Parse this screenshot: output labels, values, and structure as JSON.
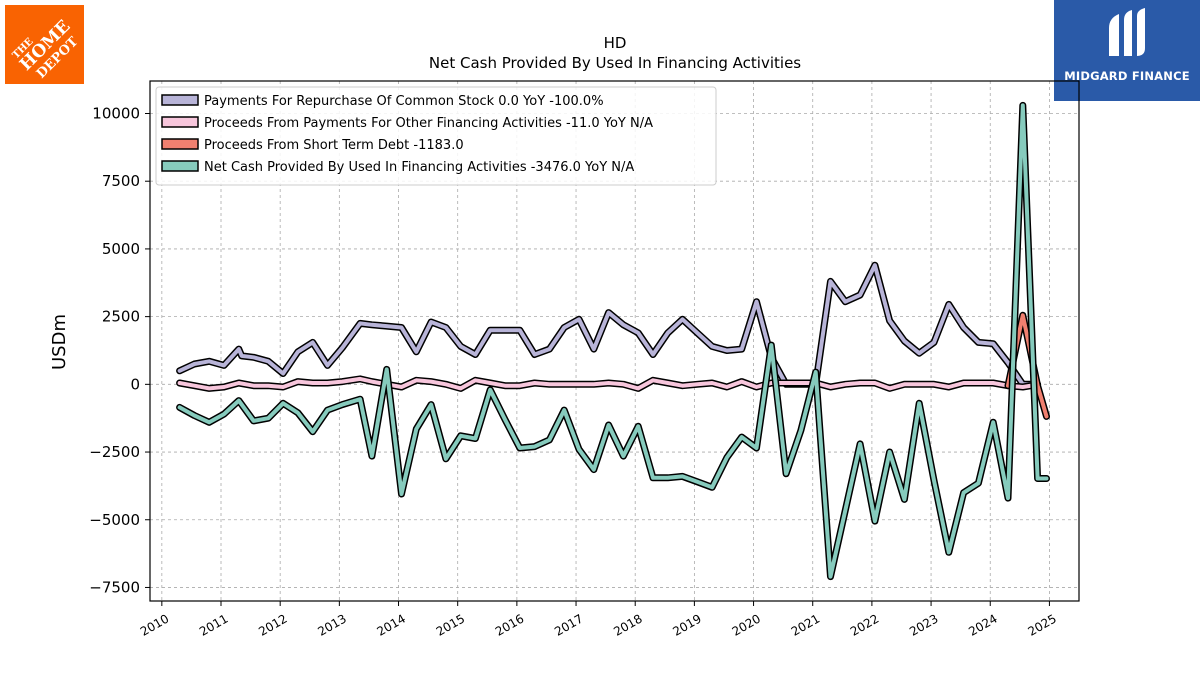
{
  "brand": {
    "left_logo": "THE HOME DEPOT",
    "right_logo": "MIDGARD FINANCE",
    "left_logo_color": "#f96302",
    "right_logo_color": "#2a5aa8"
  },
  "chart_data": {
    "type": "line",
    "title": "HD",
    "subtitle": "Net Cash Provided By Used In Financing Activities",
    "ylabel": "USDm",
    "xlabel": "",
    "xlim": [
      2009.8,
      2025.5
    ],
    "ylim": [
      -8000,
      11200
    ],
    "yticks": [
      -7500,
      -5000,
      -2500,
      0,
      2500,
      5000,
      7500,
      10000
    ],
    "ytick_labels": [
      "−7500",
      "−5000",
      "−2500",
      "0",
      "2500",
      "5000",
      "7500",
      "10000"
    ],
    "xticks": [
      2010,
      2011,
      2012,
      2013,
      2014,
      2015,
      2016,
      2017,
      2018,
      2019,
      2020,
      2021,
      2022,
      2023,
      2024,
      2025
    ],
    "xtick_labels": [
      "2010",
      "2011",
      "2012",
      "2013",
      "2014",
      "2015",
      "2016",
      "2017",
      "2018",
      "2019",
      "2020",
      "2021",
      "2022",
      "2023",
      "2024",
      "2025"
    ],
    "grid": true,
    "legend_position": "top-left",
    "series": [
      {
        "name": "Payments For Repurchase Of Common Stock  0.0 YoY -100.0%",
        "color": "#b8b4d8",
        "x": [
          2010.3,
          2010.55,
          2010.8,
          2011.05,
          2011.3,
          2011.35,
          2011.55,
          2011.8,
          2012.05,
          2012.3,
          2012.55,
          2012.8,
          2013.05,
          2013.35,
          2013.55,
          2013.8,
          2014.05,
          2014.3,
          2014.55,
          2014.8,
          2015.05,
          2015.3,
          2015.55,
          2015.8,
          2016.05,
          2016.3,
          2016.55,
          2016.8,
          2017.05,
          2017.3,
          2017.55,
          2017.8,
          2018.05,
          2018.3,
          2018.55,
          2018.8,
          2019.05,
          2019.3,
          2019.55,
          2019.8,
          2020.05,
          2020.3,
          2020.55,
          2020.8,
          2021.05,
          2021.3,
          2021.55,
          2021.8,
          2022.05,
          2022.3,
          2022.55,
          2022.8,
          2023.05,
          2023.3,
          2023.55,
          2023.8,
          2024.05,
          2024.3,
          2024.55,
          2024.8
        ],
        "y": [
          500,
          750,
          850,
          700,
          1300,
          1050,
          1000,
          850,
          400,
          1200,
          1550,
          700,
          1350,
          2250,
          2200,
          2150,
          2100,
          1200,
          2300,
          2100,
          1400,
          1100,
          2000,
          2000,
          2000,
          1100,
          1300,
          2100,
          2400,
          1300,
          2650,
          2200,
          1900,
          1100,
          1900,
          2400,
          1900,
          1400,
          1250,
          1300,
          3050,
          1000,
          0,
          0,
          0,
          3800,
          3050,
          3300,
          4400,
          2350,
          1600,
          1150,
          1550,
          2950,
          2100,
          1550,
          1500,
          800,
          0,
          0
        ]
      },
      {
        "name": "Proceeds From Payments For Other Financing Activities  -11.0 YoY N/A",
        "color": "#f7c6dc",
        "x": [
          2010.3,
          2010.55,
          2010.8,
          2011.05,
          2011.3,
          2011.55,
          2011.8,
          2012.05,
          2012.3,
          2012.55,
          2012.8,
          2013.05,
          2013.35,
          2013.55,
          2013.8,
          2014.05,
          2014.3,
          2014.55,
          2014.8,
          2015.05,
          2015.3,
          2015.55,
          2015.8,
          2016.05,
          2016.3,
          2016.55,
          2016.8,
          2017.05,
          2017.3,
          2017.55,
          2017.8,
          2018.05,
          2018.3,
          2018.55,
          2018.8,
          2019.05,
          2019.3,
          2019.55,
          2019.8,
          2020.05,
          2020.3,
          2020.55,
          2020.8,
          2021.05,
          2021.3,
          2021.55,
          2021.8,
          2022.05,
          2022.3,
          2022.55,
          2022.8,
          2023.05,
          2023.3,
          2023.55,
          2023.8,
          2024.05,
          2024.3,
          2024.55,
          2024.8
        ],
        "y": [
          50,
          -50,
          -150,
          -100,
          50,
          -50,
          -50,
          -100,
          100,
          50,
          50,
          100,
          200,
          100,
          0,
          -100,
          150,
          100,
          0,
          -150,
          150,
          50,
          -50,
          -50,
          50,
          0,
          0,
          0,
          0,
          50,
          0,
          -150,
          150,
          50,
          -50,
          0,
          50,
          -100,
          100,
          -100,
          50,
          50,
          50,
          50,
          -100,
          0,
          50,
          50,
          -150,
          0,
          0,
          0,
          -100,
          50,
          50,
          50,
          -50,
          -100,
          -11
        ]
      },
      {
        "name": "Proceeds From Short Term Debt  -1183.0",
        "color": "#f08070",
        "x": [
          2024.3,
          2024.55,
          2024.8,
          2024.95
        ],
        "y": [
          -50,
          2550,
          -50,
          -1183
        ]
      },
      {
        "name": "Net Cash Provided By Used In Financing Activities  -3476.0 YoY N/A",
        "color": "#86cbbd",
        "x": [
          2010.3,
          2010.55,
          2010.8,
          2011.05,
          2011.3,
          2011.55,
          2011.8,
          2012.05,
          2012.3,
          2012.55,
          2012.8,
          2013.05,
          2013.35,
          2013.55,
          2013.8,
          2014.05,
          2014.3,
          2014.55,
          2014.8,
          2015.05,
          2015.3,
          2015.55,
          2015.8,
          2016.05,
          2016.3,
          2016.55,
          2016.8,
          2017.05,
          2017.3,
          2017.55,
          2017.8,
          2018.05,
          2018.3,
          2018.55,
          2018.8,
          2019.05,
          2019.3,
          2019.55,
          2019.8,
          2020.05,
          2020.3,
          2020.55,
          2020.8,
          2021.05,
          2021.3,
          2021.55,
          2021.8,
          2022.05,
          2022.3,
          2022.55,
          2022.8,
          2023.05,
          2023.3,
          2023.55,
          2023.8,
          2024.05,
          2024.3,
          2024.55,
          2024.8,
          2024.95
        ],
        "y": [
          -850,
          -1150,
          -1400,
          -1100,
          -600,
          -1350,
          -1250,
          -700,
          -1050,
          -1750,
          -950,
          -750,
          -550,
          -2650,
          550,
          -4050,
          -1650,
          -750,
          -2750,
          -1900,
          -2000,
          -200,
          -1300,
          -2350,
          -2300,
          -2050,
          -950,
          -2400,
          -3150,
          -1500,
          -2650,
          -1550,
          -3450,
          -3450,
          -3400,
          -3600,
          -3800,
          -2700,
          -1950,
          -2350,
          1450,
          -3300,
          -1700,
          450,
          -7100,
          -4650,
          -2200,
          -5050,
          -2500,
          -4250,
          -700,
          -3550,
          -6200,
          -4000,
          -3650,
          -1400,
          -4200,
          10300,
          -3476,
          -3476
        ]
      }
    ]
  }
}
